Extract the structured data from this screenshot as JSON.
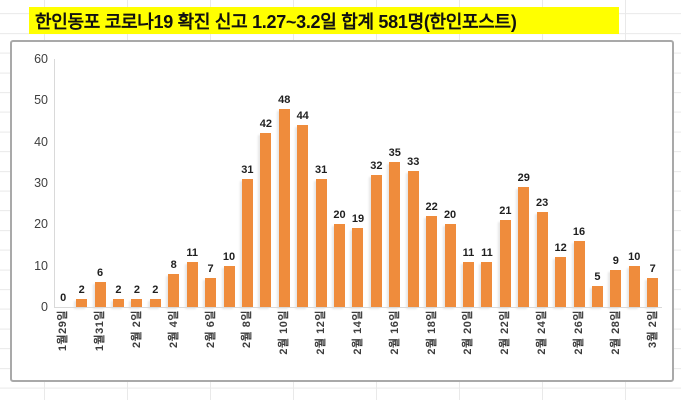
{
  "title": {
    "text": "한인동포 코로나19 확진 신고 1.27~3.2일 합계 581명(한인포스트)",
    "highlight_color": "#FFFF00",
    "text_color": "#111111"
  },
  "chart_data": {
    "type": "bar",
    "values": [
      0,
      2,
      6,
      2,
      2,
      2,
      8,
      11,
      7,
      10,
      31,
      42,
      48,
      44,
      31,
      20,
      19,
      32,
      35,
      33,
      22,
      20,
      11,
      11,
      21,
      29,
      23,
      12,
      16,
      5,
      9,
      10,
      7
    ],
    "total": 581,
    "x_tick_labels": [
      "1월29일",
      "1월31일",
      "2월 2일",
      "2월 4일",
      "2월 6일",
      "2월 8일",
      "2월 10일",
      "2월 12일",
      "2월 14일",
      "2월 16일",
      "2월 18일",
      "2월 20일",
      "2월 22일",
      "2월 24일",
      "2월 26일",
      "2월 28일",
      "3월 2일"
    ],
    "x_tick_every": 2,
    "y_ticks": [
      0,
      10,
      20,
      30,
      40,
      50,
      60
    ],
    "ylim": [
      0,
      60
    ],
    "bar_color": "#EF8C3C",
    "data_label_color": "#1F1F1F",
    "axis_line_color": "#D9D9D9",
    "grid": false,
    "legend": false,
    "data_labels_shown": true
  }
}
